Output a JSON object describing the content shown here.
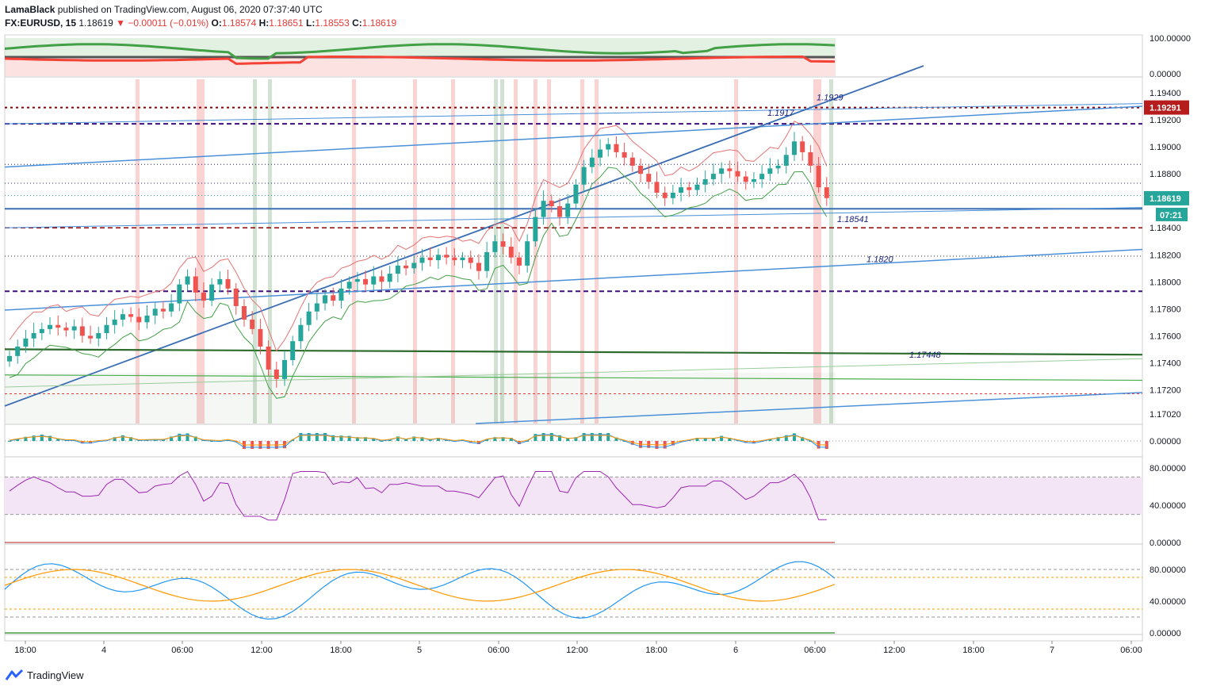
{
  "header": {
    "author": "LamaBlack",
    "published": "published on TradingView.com, August 06, 2020 07:37:40 UTC",
    "symbol": "FX:EURUSD, 15",
    "last": "1.18619",
    "change": "−0.00011 (−0.01%)",
    "o_label": "O:",
    "o_value": "1.18574",
    "h_label": "H:",
    "h_value": "1.18651",
    "l_label": "L:",
    "l_value": "1.18553",
    "c_label": "C:",
    "c_value": "1.18619"
  },
  "footer": {
    "brand": "TradingView"
  },
  "colors": {
    "green": "#2e7d32",
    "red": "#e53935",
    "blue_line": "#4a90d9",
    "navy_dashed": "#3f0f7a",
    "dark_red_dotted": "#8b0000",
    "price_tag": "#26a69a",
    "level_tag": "#b71c1c",
    "rsi_band": "#f3e5f5",
    "rsi_line": "#9c27b0",
    "stoch_k": "#2196f3",
    "stoch_d": "#ff9800"
  },
  "chart_data": {
    "type": "candlestick",
    "symbol": "FX:EURUSD",
    "interval": "15",
    "x_ticks": [
      "18:00",
      "4",
      "06:00",
      "12:00",
      "18:00",
      "5",
      "06:00",
      "12:00",
      "18:00",
      "6",
      "06:00",
      "12:00",
      "18:00",
      "7",
      "06:00"
    ],
    "y_ticks": [
      "1.19400",
      "1.19200",
      "1.19000",
      "1.18800",
      "1.18400",
      "1.18200",
      "1.18000",
      "1.17800",
      "1.17600",
      "1.17400",
      "1.17200",
      "1.17020"
    ],
    "ylim": [
      1.1695,
      1.195
    ],
    "price_tag": "1.18619",
    "countdown": "07:21",
    "level_tag": "1.19291",
    "annotations": [
      "1.1929",
      "1.1917",
      "1.18541",
      "1.1820",
      "1.17448"
    ],
    "close_series": [
      1.1745,
      1.1752,
      1.1758,
      1.1762,
      1.1765,
      1.1768,
      1.1766,
      1.1764,
      1.1767,
      1.176,
      1.1758,
      1.1762,
      1.1768,
      1.1772,
      1.1776,
      1.1774,
      1.177,
      1.1775,
      1.178,
      1.1778,
      1.1784,
      1.1798,
      1.1804,
      1.1792,
      1.1786,
      1.1798,
      1.1802,
      1.1795,
      1.1782,
      1.1772,
      1.1765,
      1.1752,
      1.1735,
      1.1728,
      1.1742,
      1.1756,
      1.1768,
      1.1778,
      1.1784,
      1.179,
      1.1786,
      1.1795,
      1.18,
      1.1802,
      1.1798,
      1.1804,
      1.18,
      1.1806,
      1.1812,
      1.181,
      1.1814,
      1.1818,
      1.1816,
      1.182,
      1.1818,
      1.1816,
      1.1818,
      1.1814,
      1.1808,
      1.1822,
      1.183,
      1.1826,
      1.1818,
      1.1812,
      1.183,
      1.1848,
      1.186,
      1.1856,
      1.1848,
      1.1858,
      1.1872,
      1.1885,
      1.1892,
      1.1898,
      1.1902,
      1.1896,
      1.1892,
      1.1886,
      1.188,
      1.1874,
      1.1866,
      1.1862,
      1.1866,
      1.187,
      1.1868,
      1.1872,
      1.1876,
      1.188,
      1.1884,
      1.1882,
      1.1878,
      1.1874,
      1.1876,
      1.188,
      1.1884,
      1.1886,
      1.1894,
      1.1904,
      1.1896,
      1.1886,
      1.187,
      1.1862
    ],
    "stats_indicator": {
      "ylim": [
        0,
        100
      ],
      "ticks": [
        "100.00000",
        "0.00000"
      ]
    },
    "macd": {
      "ticks": [
        "0.00000"
      ]
    },
    "rsi": {
      "ylim": [
        0,
        90
      ],
      "bands": [
        30,
        70
      ],
      "ticks": [
        "80.00000",
        "40.00000",
        "0.00000"
      ]
    },
    "stochastic": {
      "ylim": [
        0,
        100
      ],
      "bands": [
        20,
        80
      ],
      "ticks": [
        "80.00000",
        "40.00000",
        "0.00000"
      ]
    }
  }
}
